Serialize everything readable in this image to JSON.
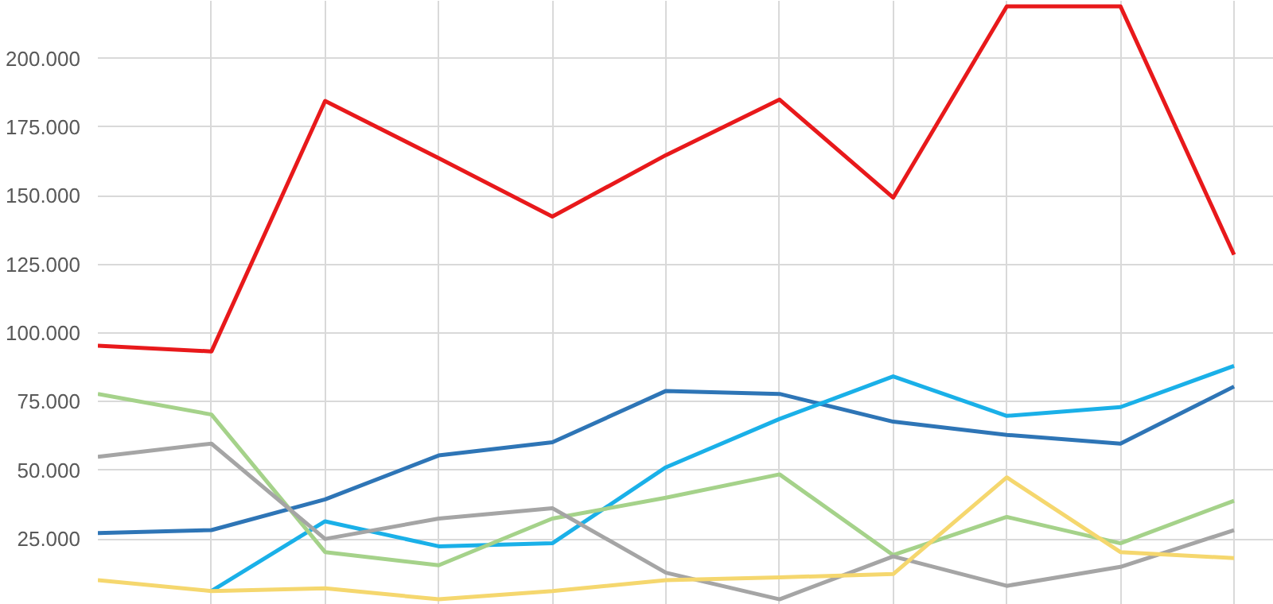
{
  "chart_data": {
    "type": "line",
    "categories": [
      null,
      null,
      null,
      null,
      null,
      null,
      null,
      null,
      null,
      null,
      null
    ],
    "series": [
      {
        "color": "#e8191b",
        "values": [
          95400,
          93300,
          184500,
          163700,
          142400,
          164800,
          185000,
          149300,
          219000,
          219000,
          128500
        ]
      },
      {
        "color": "#2e75b6",
        "values": [
          27100,
          28200,
          39400,
          55400,
          60200,
          78900,
          77800,
          67700,
          62900,
          59700,
          80500
        ]
      },
      {
        "color": "#1ab0e8",
        "values": [
          null,
          6000,
          31400,
          22300,
          23400,
          51100,
          68700,
          84200,
          69800,
          73000,
          88000
        ]
      },
      {
        "color": "#a5d28a",
        "values": [
          77800,
          70300,
          20200,
          15400,
          32400,
          40000,
          48500,
          19100,
          33000,
          23400,
          38900
        ]
      },
      {
        "color": "#a5a5a5",
        "values": [
          54900,
          59700,
          25000,
          32400,
          36200,
          12700,
          3000,
          18600,
          7900,
          14800,
          28200
        ]
      },
      {
        "color": "#f5d76e",
        "values": [
          10000,
          6000,
          7000,
          3000,
          6000,
          10000,
          11000,
          12200,
          47400,
          20200,
          18000
        ]
      }
    ],
    "ylim": [
      1000,
      221000
    ],
    "yticks": [
      {
        "value": 25000,
        "label": "25.000"
      },
      {
        "value": 50000,
        "label": "50.000"
      },
      {
        "value": 75000,
        "label": "75.000"
      },
      {
        "value": 100000,
        "label": "100.000"
      },
      {
        "value": 125000,
        "label": "125.000"
      },
      {
        "value": 150000,
        "label": "150.000"
      },
      {
        "value": 175000,
        "label": "175.000"
      },
      {
        "value": 200000,
        "label": "200.000"
      }
    ],
    "grid": true,
    "tick_labels": "y"
  }
}
